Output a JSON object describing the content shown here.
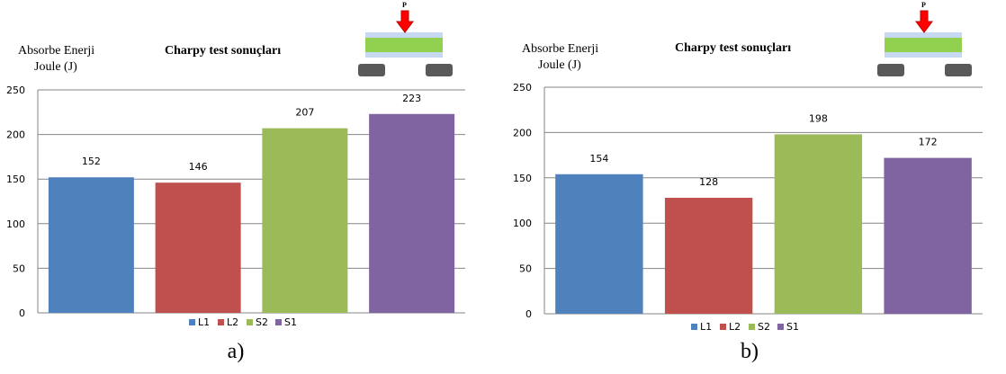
{
  "legend_colors": [
    "#4f81bd",
    "#c0504d",
    "#9bbb59",
    "#8064a2"
  ],
  "chart_data": [
    {
      "type": "bar",
      "title": "Charpy   test sonuçları",
      "ylabel": "Absorbe Enerji",
      "ylabel_unit": "Joule  (J)",
      "categories": [
        "L1",
        "L2",
        "S2",
        "S1"
      ],
      "values": [
        152,
        146,
        207,
        223
      ],
      "ylim": [
        0,
        250
      ],
      "yticks": [
        "0",
        "50",
        "100",
        "150",
        "200",
        "250"
      ],
      "grid": true,
      "legend_position": "bottom",
      "caption": "a)",
      "load_label": "P"
    },
    {
      "type": "bar",
      "title": "Charpy   test sonuçları",
      "ylabel": "Absorbe Enerji",
      "ylabel_unit": "Joule  (J)",
      "categories": [
        "L1",
        "L2",
        "S2",
        "S1"
      ],
      "values": [
        154,
        128,
        198,
        172
      ],
      "ylim": [
        0,
        250
      ],
      "yticks": [
        "0",
        "50",
        "100",
        "150",
        "200",
        "250"
      ],
      "grid": true,
      "legend_position": "bottom",
      "caption": "b)",
      "load_label": "P"
    }
  ]
}
